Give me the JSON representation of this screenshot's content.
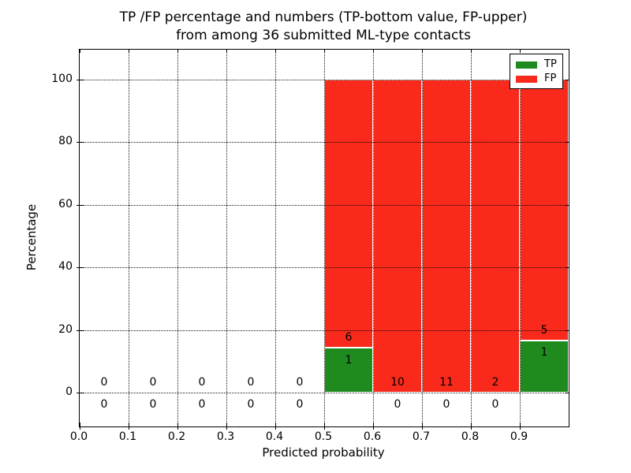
{
  "figure": {
    "background": "#ffffff"
  },
  "chart_data": {
    "type": "bar",
    "stacked": true,
    "title_line1": "TP /FP percentage and numbers (TP-bottom value, FP-upper)",
    "title_line2": "from among 36 submitted ML-type contacts",
    "xlabel": "Predicted probability",
    "ylabel": "Percentage",
    "total_contacts": 36,
    "grid": "dotted",
    "xlim": [
      0.0,
      1.0
    ],
    "ylim_pct": [
      -10.8,
      109.6
    ],
    "x_tick_labels": [
      "0.0",
      "0.1",
      "0.2",
      "0.3",
      "0.4",
      "0.5",
      "0.6",
      "0.7",
      "0.8",
      "0.9"
    ],
    "x_tick_values": [
      0.0,
      0.1,
      0.2,
      0.3,
      0.4,
      0.5,
      0.6,
      0.7,
      0.8,
      0.9
    ],
    "y_tick_labels": [
      "0",
      "20",
      "40",
      "60",
      "80",
      "100"
    ],
    "y_tick_values": [
      0,
      20,
      40,
      60,
      80,
      100
    ],
    "legend": {
      "position": "upper right",
      "entries": [
        {
          "label": "TP",
          "color": "#1f8b1f"
        },
        {
          "label": "FP",
          "color": "#f92a1b"
        }
      ]
    },
    "colors": {
      "tp": "#1f8b1f",
      "fp": "#f92a1b",
      "grid": "#000000",
      "text": "#000000"
    },
    "bins": [
      {
        "range": [
          0.0,
          0.1
        ],
        "tp": 0,
        "fp": 0
      },
      {
        "range": [
          0.1,
          0.2
        ],
        "tp": 0,
        "fp": 0
      },
      {
        "range": [
          0.2,
          0.3
        ],
        "tp": 0,
        "fp": 0
      },
      {
        "range": [
          0.3,
          0.4
        ],
        "tp": 0,
        "fp": 0
      },
      {
        "range": [
          0.4,
          0.5
        ],
        "tp": 0,
        "fp": 0
      },
      {
        "range": [
          0.5,
          0.6
        ],
        "tp": 1,
        "fp": 6
      },
      {
        "range": [
          0.6,
          0.7
        ],
        "tp": 0,
        "fp": 10
      },
      {
        "range": [
          0.7,
          0.8
        ],
        "tp": 0,
        "fp": 11
      },
      {
        "range": [
          0.8,
          0.9
        ],
        "tp": 0,
        "fp": 2
      },
      {
        "range": [
          0.9,
          1.0
        ],
        "tp": 1,
        "fp": 5
      }
    ]
  }
}
